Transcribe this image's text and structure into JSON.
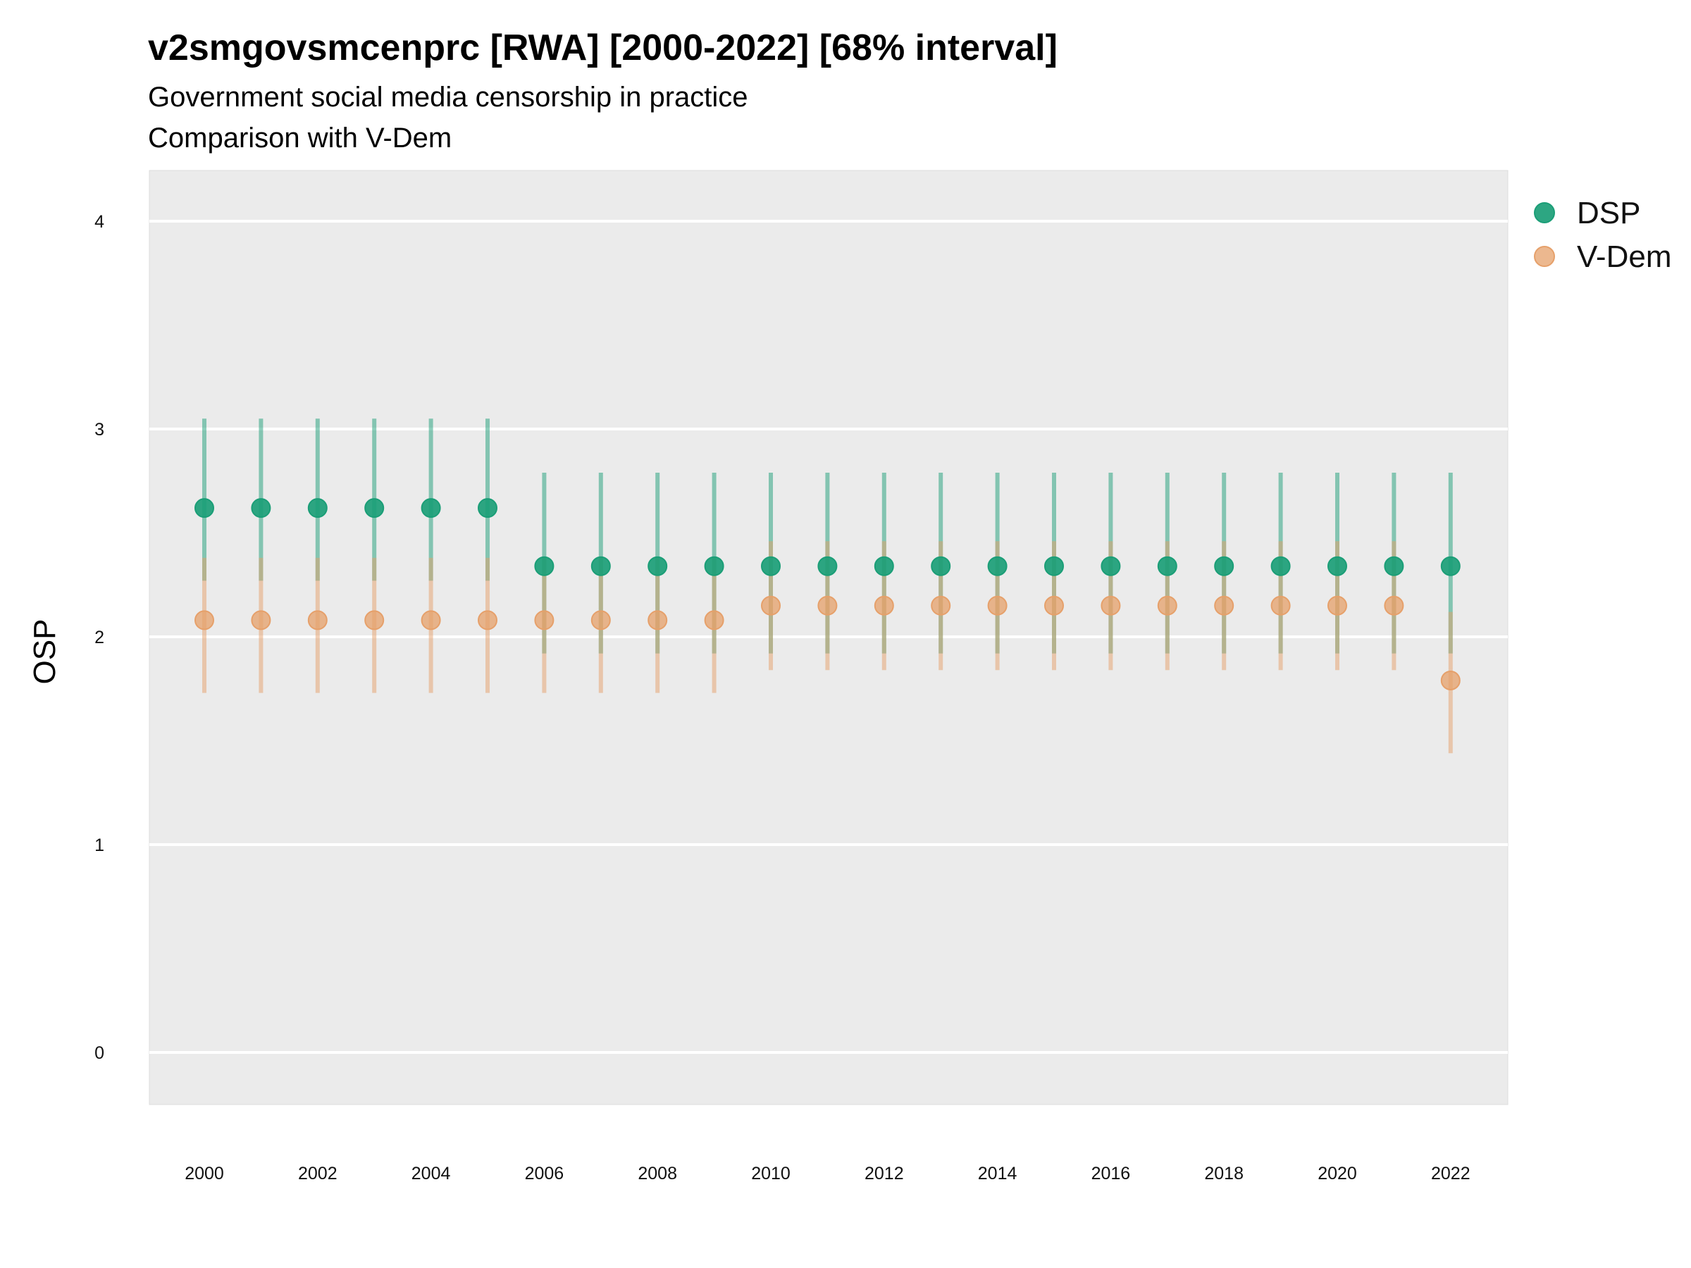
{
  "chart_data": {
    "type": "scatter",
    "title": "v2smgovsmcenprc [RWA] [2000-2022] [68% interval]",
    "subtitle": "Government social media censorship in practice",
    "subtitle2": "Comparison with V-Dem",
    "ylabel": "OSP",
    "xlabel": "",
    "x": [
      2000,
      2001,
      2002,
      2003,
      2004,
      2005,
      2006,
      2007,
      2008,
      2009,
      2010,
      2011,
      2012,
      2013,
      2014,
      2015,
      2016,
      2017,
      2018,
      2019,
      2020,
      2021,
      2022
    ],
    "x_ticks": [
      "2000",
      "2002",
      "2004",
      "2006",
      "2008",
      "2010",
      "2012",
      "2014",
      "2016",
      "2018",
      "2020",
      "2022"
    ],
    "y_ticks": [
      "0",
      "1",
      "2",
      "3",
      "4"
    ],
    "ylim": [
      -0.25,
      4.25
    ],
    "grid": true,
    "legend_position": "right",
    "series": [
      {
        "name": "DSP",
        "color": "#1b9e77",
        "y": [
          2.62,
          2.62,
          2.62,
          2.62,
          2.62,
          2.62,
          2.34,
          2.34,
          2.34,
          2.34,
          2.34,
          2.34,
          2.34,
          2.34,
          2.34,
          2.34,
          2.34,
          2.34,
          2.34,
          2.34,
          2.34,
          2.34,
          2.34
        ],
        "low": [
          2.27,
          2.27,
          2.27,
          2.27,
          2.27,
          2.27,
          1.92,
          1.92,
          1.92,
          1.92,
          1.92,
          1.92,
          1.92,
          1.92,
          1.92,
          1.92,
          1.92,
          1.92,
          1.92,
          1.92,
          1.92,
          1.92,
          1.92
        ],
        "high": [
          3.05,
          3.05,
          3.05,
          3.05,
          3.05,
          3.05,
          2.79,
          2.79,
          2.79,
          2.79,
          2.79,
          2.79,
          2.79,
          2.79,
          2.79,
          2.79,
          2.79,
          2.79,
          2.79,
          2.79,
          2.79,
          2.79,
          2.79
        ]
      },
      {
        "name": "V-Dem",
        "color": "#e6a06a",
        "y": [
          2.08,
          2.08,
          2.08,
          2.08,
          2.08,
          2.08,
          2.08,
          2.08,
          2.08,
          2.08,
          2.15,
          2.15,
          2.15,
          2.15,
          2.15,
          2.15,
          2.15,
          2.15,
          2.15,
          2.15,
          2.15,
          2.15,
          1.79
        ],
        "low": [
          1.73,
          1.73,
          1.73,
          1.73,
          1.73,
          1.73,
          1.73,
          1.73,
          1.73,
          1.73,
          1.84,
          1.84,
          1.84,
          1.84,
          1.84,
          1.84,
          1.84,
          1.84,
          1.84,
          1.84,
          1.84,
          1.84,
          1.44
        ],
        "high": [
          2.38,
          2.38,
          2.38,
          2.38,
          2.38,
          2.38,
          2.38,
          2.38,
          2.38,
          2.38,
          2.46,
          2.46,
          2.46,
          2.46,
          2.46,
          2.46,
          2.46,
          2.46,
          2.46,
          2.46,
          2.46,
          2.46,
          2.12
        ]
      }
    ]
  }
}
